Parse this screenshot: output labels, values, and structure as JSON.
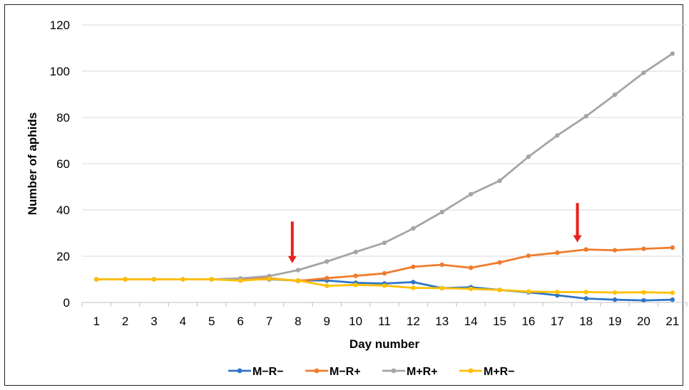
{
  "chart_data": {
    "type": "line",
    "xlabel": "Day number",
    "ylabel": "Number of aphids",
    "ylim": [
      0,
      120
    ],
    "yticks": [
      0,
      20,
      40,
      60,
      80,
      100,
      120
    ],
    "categories": [
      "1",
      "2",
      "3",
      "4",
      "5",
      "6",
      "7",
      "8",
      "9",
      "10",
      "11",
      "12",
      "13",
      "14",
      "15",
      "16",
      "17",
      "18",
      "19",
      "20",
      "21"
    ],
    "grid": "horizontal",
    "legend_position": "bottom",
    "series": [
      {
        "name": "M−R−",
        "color": "#2e75c6",
        "values": [
          10,
          10,
          10,
          10,
          10,
          10,
          10,
          9.5,
          9.5,
          8.5,
          8.2,
          8.8,
          6.2,
          6.6,
          5.4,
          4.4,
          3.1,
          1.7,
          1.2,
          0.9,
          1.2
        ]
      },
      {
        "name": "M−R+",
        "color": "#f07c2d",
        "values": [
          10,
          10,
          10,
          10,
          10,
          10,
          10.5,
          9.3,
          10.5,
          11.5,
          12.6,
          15.4,
          16.3,
          15,
          17.3,
          20.2,
          21.5,
          22.9,
          22.6,
          23.2,
          23.7
        ]
      },
      {
        "name": "M+R+",
        "color": "#a5a5a5",
        "values": [
          10,
          10,
          10,
          10,
          10,
          10.4,
          11.4,
          14,
          17.7,
          21.8,
          25.8,
          32,
          39.1,
          46.8,
          52.6,
          63,
          72.2,
          80.5,
          89.8,
          99.3,
          107.6
        ]
      },
      {
        "name": "M+R−",
        "color": "#ffc000",
        "values": [
          10,
          10,
          10,
          10,
          10,
          9.4,
          10.2,
          9.5,
          7.2,
          7.6,
          7.3,
          6.3,
          6.2,
          5.9,
          5.4,
          4.7,
          4.5,
          4.5,
          4.3,
          4.4,
          4.2
        ]
      }
    ],
    "annotations": [
      {
        "type": "down-arrow",
        "x": 7.8,
        "y_tip": 17,
        "y_tail": 35,
        "color": "#e8201a"
      },
      {
        "type": "down-arrow",
        "x": 17.7,
        "y_tip": 26,
        "y_tail": 43,
        "color": "#e8201a"
      }
    ]
  }
}
